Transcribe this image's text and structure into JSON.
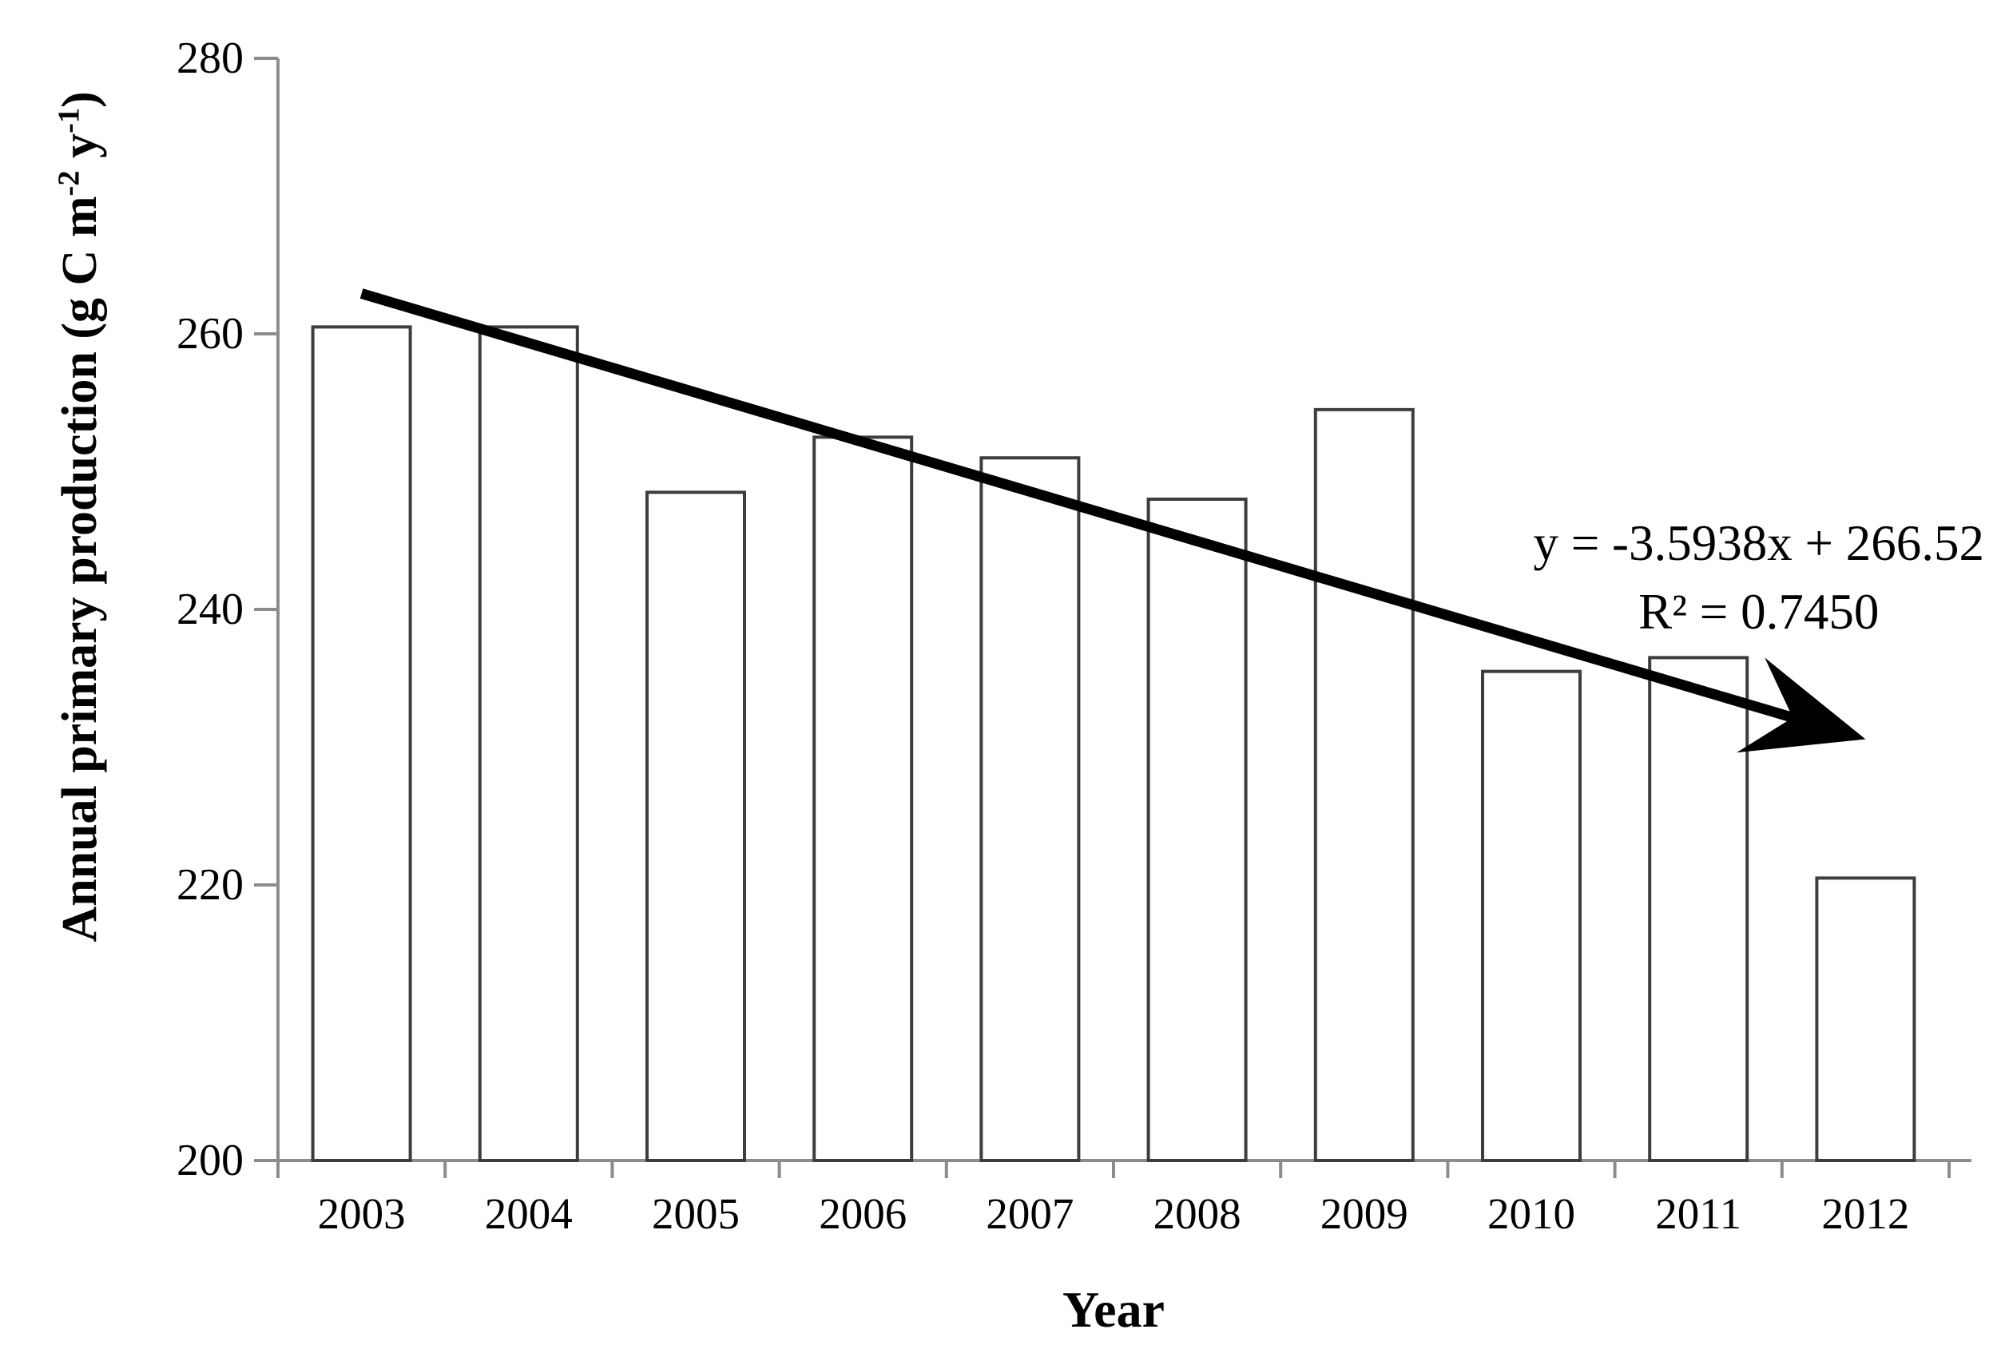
{
  "chart_data": {
    "type": "bar",
    "title": "",
    "categories": [
      "2003",
      "2004",
      "2005",
      "2006",
      "2007",
      "2008",
      "2009",
      "2010",
      "2011",
      "2012"
    ],
    "values": [
      260.5,
      260.5,
      248.5,
      252.5,
      251,
      248,
      254.5,
      235.5,
      236.5,
      220.5
    ],
    "xlabel": "Year",
    "ylabel": "Annual primary production (g C m⁻² y⁻¹)",
    "ylabel_parts": {
      "p1": "Annual primary production (g C m",
      "s1": "-2",
      "p2": " y",
      "s2": "-1",
      "p3": ")"
    },
    "ylim": [
      200,
      280
    ],
    "yticks": [
      200,
      220,
      240,
      260,
      280
    ],
    "grid": false,
    "legend": "none",
    "bar_fill": "#ffffff",
    "bar_stroke": "#3d3d3d",
    "axis_color": "#8c8c8c",
    "trendline": {
      "slope": -3.5938,
      "intercept": 266.52,
      "equation_label": "y = -3.5938x + 266.52",
      "r2_label": "R² = 0.7450",
      "color": "#000000"
    }
  }
}
